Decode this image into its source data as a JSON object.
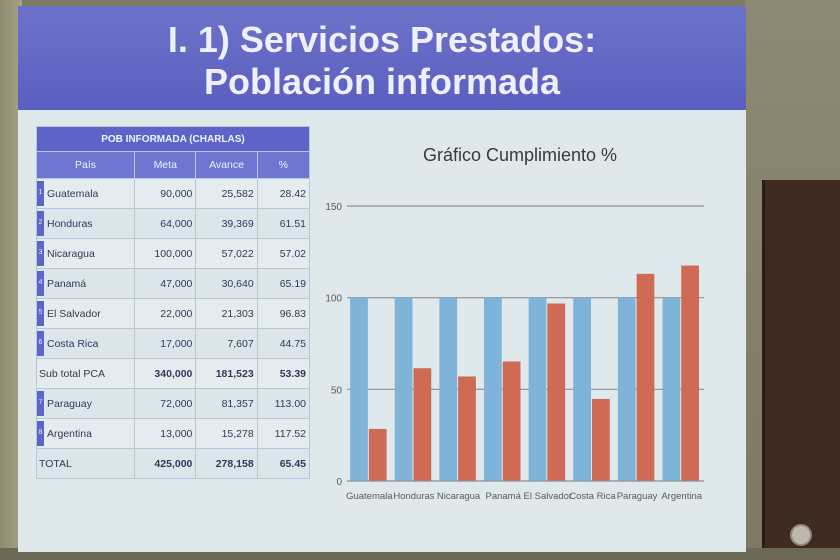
{
  "slide": {
    "title_line1": "I. 1) Servicios Prestados:",
    "title_line2": "Población informada"
  },
  "table": {
    "caption": "POB INFORMADA (CHARLAS)",
    "headers": [
      "País",
      "Meta",
      "Avance",
      "%"
    ],
    "rows": [
      {
        "idx": "1",
        "pais": "Guatemala",
        "meta": "90,000",
        "avance": "25,582",
        "pct": "28.42"
      },
      {
        "idx": "2",
        "pais": "Honduras",
        "meta": "64,000",
        "avance": "39,369",
        "pct": "61.51"
      },
      {
        "idx": "3",
        "pais": "Nicaragua",
        "meta": "100,000",
        "avance": "57,022",
        "pct": "57.02"
      },
      {
        "idx": "4",
        "pais": "Panamá",
        "meta": "47,000",
        "avance": "30,640",
        "pct": "65.19"
      },
      {
        "idx": "5",
        "pais": "El Salvador",
        "meta": "22,000",
        "avance": "21,303",
        "pct": "96.83"
      },
      {
        "idx": "6",
        "pais": "Costa Rica",
        "meta": "17,000",
        "avance": "7,607",
        "pct": "44.75"
      },
      {
        "idx": "",
        "pais": "Sub total PCA",
        "meta": "340,000",
        "avance": "181,523",
        "pct": "53.39",
        "subtotal": true
      },
      {
        "idx": "7",
        "pais": "Paraguay",
        "meta": "72,000",
        "avance": "81,357",
        "pct": "113.00"
      },
      {
        "idx": "8",
        "pais": "Argentina",
        "meta": "13,000",
        "avance": "15,278",
        "pct": "117.52"
      },
      {
        "idx": "",
        "pais": "TOTAL",
        "meta": "425,000",
        "avance": "278,158",
        "pct": "65.45",
        "total": true
      }
    ]
  },
  "chart_data": {
    "type": "bar",
    "title": "Gráfico Cumplimiento %",
    "categories": [
      "Guatemala",
      "Honduras",
      "Nicaragua",
      "Panamá",
      "El Salvador",
      "Costa Rica",
      "Paraguay",
      "Argentina"
    ],
    "series": [
      {
        "values": [
          100,
          100,
          100,
          100,
          100,
          100,
          100,
          100
        ],
        "color": "#7fb3d8"
      },
      {
        "values": [
          28.42,
          61.51,
          57.02,
          65.19,
          96.83,
          44.75,
          113.0,
          117.52
        ],
        "color": "#cf6b55"
      }
    ],
    "yticks": [
      "0",
      "50",
      "100",
      "150"
    ],
    "ylim": [
      0,
      150
    ],
    "grid": true
  },
  "colors": {
    "title_bg": "#5a5fbf",
    "table_header": "#6f76d1",
    "bar_meta": "#7fb3d8",
    "bar_avance": "#cf6b55"
  }
}
